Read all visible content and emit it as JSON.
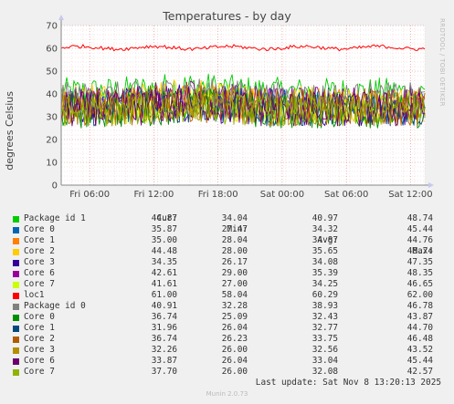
{
  "chart_data": {
    "type": "line",
    "title": "Temperatures - by day",
    "ylabel": "degrees Celsius",
    "ylim": [
      0,
      70
    ],
    "yticks": [
      0,
      10,
      20,
      30,
      40,
      50,
      60,
      70
    ],
    "x_ticks": [
      "Fri 06:00",
      "Fri 12:00",
      "Fri 18:00",
      "Sat 00:00",
      "Sat 06:00",
      "Sat 12:00"
    ],
    "x_range_hours": [
      "Fri 03:20",
      "Sat 13:20"
    ],
    "grid": true,
    "legend_headers": [
      "Cur:",
      "Min:",
      "Avg:",
      "Max:"
    ],
    "series": [
      {
        "name": "Package id 1",
        "color": "#00cc00",
        "cur": "44.87",
        "min": "34.04",
        "avg": "40.97",
        "max": "48.74"
      },
      {
        "name": "Core 0",
        "color": "#0066b3",
        "cur": "35.87",
        "min": "27.47",
        "avg": "34.32",
        "max": "45.44"
      },
      {
        "name": "Core 1",
        "color": "#ff8000",
        "cur": "35.00",
        "min": "28.04",
        "avg": "34.87",
        "max": "44.76"
      },
      {
        "name": "Core 2",
        "color": "#ffcc00",
        "cur": "44.48",
        "min": "28.00",
        "avg": "35.65",
        "max": "48.74"
      },
      {
        "name": "Core 3",
        "color": "#330099",
        "cur": "34.35",
        "min": "26.17",
        "avg": "34.08",
        "max": "47.35"
      },
      {
        "name": "Core 6",
        "color": "#990099",
        "cur": "42.61",
        "min": "29.00",
        "avg": "35.39",
        "max": "48.35"
      },
      {
        "name": "Core 7",
        "color": "#ccff00",
        "cur": "41.61",
        "min": "27.00",
        "avg": "34.25",
        "max": "46.65"
      },
      {
        "name": "loc1",
        "color": "#ff0000",
        "cur": "61.00",
        "min": "58.04",
        "avg": "60.29",
        "max": "62.00"
      },
      {
        "name": "Package id 0",
        "color": "#808080",
        "cur": "40.91",
        "min": "32.28",
        "avg": "38.93",
        "max": "46.78"
      },
      {
        "name": "Core 0",
        "color": "#008f00",
        "cur": "36.74",
        "min": "25.09",
        "avg": "32.43",
        "max": "43.87"
      },
      {
        "name": "Core 1",
        "color": "#00487d",
        "cur": "31.96",
        "min": "26.04",
        "avg": "32.77",
        "max": "44.70"
      },
      {
        "name": "Core 2",
        "color": "#b35a00",
        "cur": "36.74",
        "min": "26.23",
        "avg": "33.75",
        "max": "46.48"
      },
      {
        "name": "Core 3",
        "color": "#b38f00",
        "cur": "32.26",
        "min": "26.00",
        "avg": "32.56",
        "max": "43.52"
      },
      {
        "name": "Core 6",
        "color": "#6b006b",
        "cur": "33.87",
        "min": "26.04",
        "avg": "33.04",
        "max": "45.44"
      },
      {
        "name": "Core 7",
        "color": "#8fb300",
        "cur": "37.70",
        "min": "26.00",
        "avg": "32.08",
        "max": "42.57"
      }
    ]
  },
  "side_label": "RRDTOOL / TOBI OETIKER",
  "last_update": "Last update:  Sat Nov  8 13:20:13 2025",
  "version": "Munin 2.0.73"
}
